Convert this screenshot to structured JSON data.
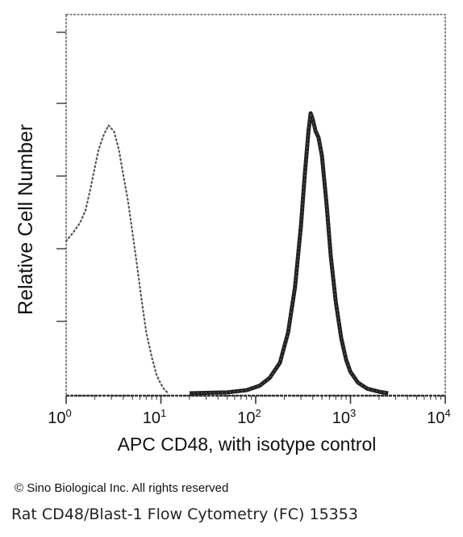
{
  "chart_data": {
    "type": "line",
    "title": "",
    "xlabel": "APC CD48, with isotype control",
    "ylabel": "Relative Cell Number",
    "x_scale": "log",
    "xlim": [
      1,
      10000
    ],
    "ylim": [
      0,
      1
    ],
    "x_ticks": [
      {
        "base": "10",
        "exp": "0",
        "value": 1
      },
      {
        "base": "10",
        "exp": "1",
        "value": 10
      },
      {
        "base": "10",
        "exp": "2",
        "value": 100
      },
      {
        "base": "10",
        "exp": "3",
        "value": 1000
      },
      {
        "base": "10",
        "exp": "4",
        "value": 10000
      }
    ],
    "grid": false,
    "legend": "none",
    "series": [
      {
        "style": "dashed",
        "color": "#555555",
        "x": [
          1.0,
          1.2,
          1.4,
          1.6,
          1.8,
          2.0,
          2.2,
          2.5,
          2.8,
          3.2,
          3.6,
          4.0,
          4.5,
          5.0,
          5.6,
          6.3,
          7.0,
          8.0,
          9.0,
          10.0,
          11.0,
          12.0
        ],
        "y": [
          0.5,
          0.53,
          0.56,
          0.6,
          0.67,
          0.74,
          0.8,
          0.85,
          0.88,
          0.86,
          0.8,
          0.72,
          0.63,
          0.53,
          0.42,
          0.3,
          0.2,
          0.12,
          0.06,
          0.03,
          0.01,
          0.0
        ]
      },
      {
        "style": "solid",
        "color": "#222222",
        "x": [
          20,
          50,
          80,
          110,
          140,
          180,
          220,
          260,
          300,
          330,
          360,
          380,
          400,
          430,
          460,
          500,
          560,
          620,
          700,
          800,
          900,
          1000,
          1200,
          1500,
          2000,
          2500
        ],
        "y": [
          0.0,
          0.003,
          0.01,
          0.025,
          0.05,
          0.1,
          0.2,
          0.35,
          0.55,
          0.72,
          0.86,
          0.92,
          0.9,
          0.86,
          0.84,
          0.78,
          0.62,
          0.45,
          0.3,
          0.18,
          0.11,
          0.07,
          0.035,
          0.015,
          0.005,
          0.0
        ]
      }
    ]
  },
  "footer": {
    "copyright": "© Sino Biological Inc. All rights reserved",
    "caption": "Rat CD48/Blast-1 Flow Cytometry (FC) 15353"
  }
}
